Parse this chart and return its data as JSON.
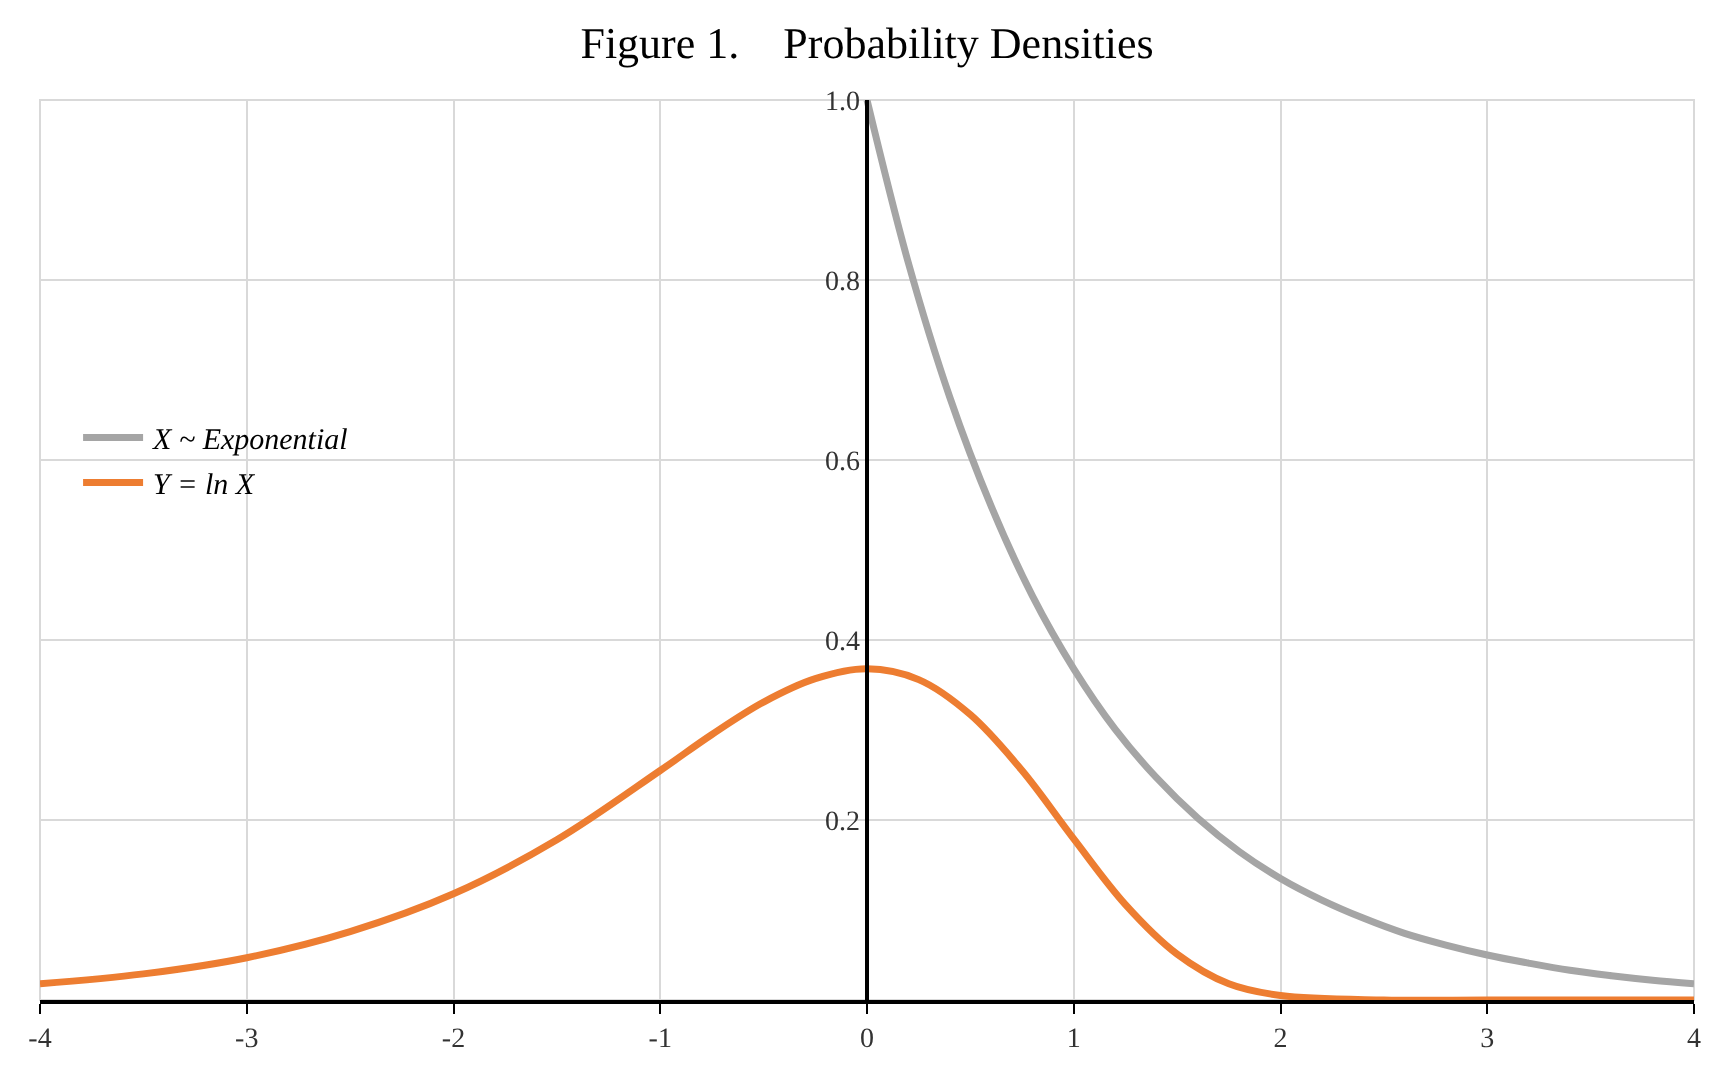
{
  "chart_data": {
    "type": "line",
    "title": "Figure 1.    Probability Densities",
    "series": [
      {
        "name": "X ~ Exponential",
        "color": "#a5a5a5",
        "x": [
          0,
          0.2,
          0.4,
          0.6,
          0.8,
          1,
          1.2,
          1.4,
          1.6,
          1.8,
          2,
          2.2,
          2.4,
          2.6,
          2.8,
          3,
          3.2,
          3.4,
          3.6,
          3.8,
          4
        ],
        "values": [
          1,
          0.819,
          0.67,
          0.549,
          0.449,
          0.368,
          0.301,
          0.247,
          0.202,
          0.165,
          0.135,
          0.111,
          0.091,
          0.074,
          0.061,
          0.05,
          0.041,
          0.033,
          0.027,
          0.022,
          0.018
        ]
      },
      {
        "name": "Y = ln X",
        "color": "#ed7d31",
        "x": [
          -4,
          -3.5,
          -3,
          -2.5,
          -2,
          -1.5,
          -1,
          -0.75,
          -0.5,
          -0.25,
          0,
          0.25,
          0.5,
          0.75,
          1,
          1.25,
          1.5,
          1.75,
          2,
          2.5,
          3,
          3.5,
          4
        ],
        "values": [
          0.018,
          0.029,
          0.047,
          0.076,
          0.118,
          0.178,
          0.255,
          0.295,
          0.331,
          0.357,
          0.368,
          0.356,
          0.317,
          0.255,
          0.179,
          0.106,
          0.051,
          0.018,
          0.005,
          0,
          0,
          0,
          0
        ]
      }
    ],
    "xlim": [
      -4,
      4
    ],
    "xticks": [
      -4,
      -3,
      -2,
      -1,
      0,
      1,
      2,
      3,
      4
    ],
    "ylim": [
      0,
      1
    ],
    "yticks": [
      0.2,
      0.4,
      0.6,
      0.8,
      {
        "value": 1,
        "label": "1.0"
      }
    ],
    "grid": true,
    "legend": "left",
    "marker": "none",
    "line_style": "solid"
  }
}
